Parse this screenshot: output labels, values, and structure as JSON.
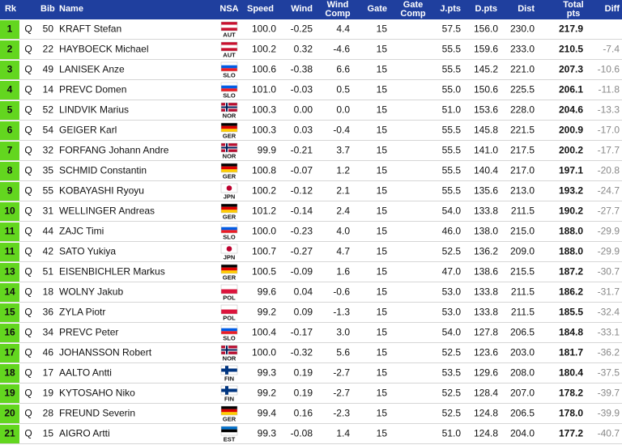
{
  "table": {
    "header": [
      "Rk",
      "Bib",
      "Name",
      "NSA",
      "Speed",
      "Wind",
      "Wind Comp",
      "Gate",
      "Gate Comp",
      "J.pts",
      "D.pts",
      "Dist",
      "Total pts",
      "Diff"
    ],
    "flags": {
      "AUT": {
        "type": "stripes",
        "colors": [
          "#c8102e",
          "#ffffff",
          "#c8102e"
        ]
      },
      "SLO": {
        "type": "stripes",
        "colors": [
          "#ffffff",
          "#005ce5",
          "#ed1c24"
        ]
      },
      "NOR": {
        "type": "cross",
        "colors": [
          "#ba0c2f",
          "#ffffff",
          "#00205b"
        ]
      },
      "GER": {
        "type": "stripes",
        "colors": [
          "#000000",
          "#dd0000",
          "#ffce00"
        ]
      },
      "JPN": {
        "type": "disc",
        "colors": [
          "#ffffff",
          "#bc002d"
        ]
      },
      "POL": {
        "type": "stripes",
        "colors": [
          "#ffffff",
          "#dc143c"
        ]
      },
      "FIN": {
        "type": "cross",
        "colors": [
          "#ffffff",
          "#003580"
        ]
      },
      "EST": {
        "type": "stripes",
        "colors": [
          "#0072ce",
          "#000000",
          "#ffffff"
        ]
      }
    },
    "rows": [
      [
        "1",
        "Q",
        "50",
        "KRAFT Stefan",
        "AUT",
        "100.0",
        "-0.25",
        "4.4",
        "15",
        "57.5",
        "156.0",
        "230.0",
        "217.9",
        null
      ],
      [
        "2",
        "Q",
        "22",
        "HAYBOECK Michael",
        "AUT",
        "100.2",
        "0.32",
        "-4.6",
        "15",
        "55.5",
        "159.6",
        "233.0",
        "210.5",
        "-7.4"
      ],
      [
        "3",
        "Q",
        "49",
        "LANISEK Anze",
        "SLO",
        "100.6",
        "-0.38",
        "6.6",
        "15",
        "55.5",
        "145.2",
        "221.0",
        "207.3",
        "-10.6"
      ],
      [
        "4",
        "Q",
        "14",
        "PREVC Domen",
        "SLO",
        "101.0",
        "-0.03",
        "0.5",
        "15",
        "55.0",
        "150.6",
        "225.5",
        "206.1",
        "-11.8"
      ],
      [
        "5",
        "Q",
        "52",
        "LINDVIK Marius",
        "NOR",
        "100.3",
        "0.00",
        "0.0",
        "15",
        "51.0",
        "153.6",
        "228.0",
        "204.6",
        "-13.3"
      ],
      [
        "6",
        "Q",
        "54",
        "GEIGER Karl",
        "GER",
        "100.3",
        "0.03",
        "-0.4",
        "15",
        "55.5",
        "145.8",
        "221.5",
        "200.9",
        "-17.0"
      ],
      [
        "7",
        "Q",
        "32",
        "FORFANG Johann Andre",
        "NOR",
        "99.9",
        "-0.21",
        "3.7",
        "15",
        "55.5",
        "141.0",
        "217.5",
        "200.2",
        "-17.7"
      ],
      [
        "8",
        "Q",
        "35",
        "SCHMID Constantin",
        "GER",
        "100.8",
        "-0.07",
        "1.2",
        "15",
        "55.5",
        "140.4",
        "217.0",
        "197.1",
        "-20.8"
      ],
      [
        "9",
        "Q",
        "55",
        "KOBAYASHI Ryoyu",
        "JPN",
        "100.2",
        "-0.12",
        "2.1",
        "15",
        "55.5",
        "135.6",
        "213.0",
        "193.2",
        "-24.7"
      ],
      [
        "10",
        "Q",
        "31",
        "WELLINGER Andreas",
        "GER",
        "101.2",
        "-0.14",
        "2.4",
        "15",
        "54.0",
        "133.8",
        "211.5",
        "190.2",
        "-27.7"
      ],
      [
        "11",
        "Q",
        "44",
        "ZAJC Timi",
        "SLO",
        "100.0",
        "-0.23",
        "4.0",
        "15",
        "46.0",
        "138.0",
        "215.0",
        "188.0",
        "-29.9"
      ],
      [
        "11",
        "Q",
        "42",
        "SATO Yukiya",
        "JPN",
        "100.7",
        "-0.27",
        "4.7",
        "15",
        "52.5",
        "136.2",
        "209.0",
        "188.0",
        "-29.9"
      ],
      [
        "13",
        "Q",
        "51",
        "EISENBICHLER Markus",
        "GER",
        "100.5",
        "-0.09",
        "1.6",
        "15",
        "47.0",
        "138.6",
        "215.5",
        "187.2",
        "-30.7"
      ],
      [
        "14",
        "Q",
        "18",
        "WOLNY Jakub",
        "POL",
        "99.6",
        "0.04",
        "-0.6",
        "15",
        "53.0",
        "133.8",
        "211.5",
        "186.2",
        "-31.7"
      ],
      [
        "15",
        "Q",
        "36",
        "ZYLA Piotr",
        "POL",
        "99.2",
        "0.09",
        "-1.3",
        "15",
        "53.0",
        "133.8",
        "211.5",
        "185.5",
        "-32.4"
      ],
      [
        "16",
        "Q",
        "34",
        "PREVC Peter",
        "SLO",
        "100.4",
        "-0.17",
        "3.0",
        "15",
        "54.0",
        "127.8",
        "206.5",
        "184.8",
        "-33.1"
      ],
      [
        "17",
        "Q",
        "46",
        "JOHANSSON Robert",
        "NOR",
        "100.0",
        "-0.32",
        "5.6",
        "15",
        "52.5",
        "123.6",
        "203.0",
        "181.7",
        "-36.2"
      ],
      [
        "18",
        "Q",
        "17",
        "AALTO Antti",
        "FIN",
        "99.3",
        "0.19",
        "-2.7",
        "15",
        "53.5",
        "129.6",
        "208.0",
        "180.4",
        "-37.5"
      ],
      [
        "19",
        "Q",
        "19",
        "KYTOSAHO Niko",
        "FIN",
        "99.2",
        "0.19",
        "-2.7",
        "15",
        "52.5",
        "128.4",
        "207.0",
        "178.2",
        "-39.7"
      ],
      [
        "20",
        "Q",
        "28",
        "FREUND Severin",
        "GER",
        "99.4",
        "0.16",
        "-2.3",
        "15",
        "52.5",
        "124.8",
        "206.5",
        "178.0",
        "-39.9"
      ],
      [
        "21",
        "Q",
        "15",
        "AIGRO Artti",
        "EST",
        "99.3",
        "-0.08",
        "1.4",
        "15",
        "51.0",
        "124.8",
        "204.0",
        "177.2",
        "-40.7"
      ]
    ]
  }
}
